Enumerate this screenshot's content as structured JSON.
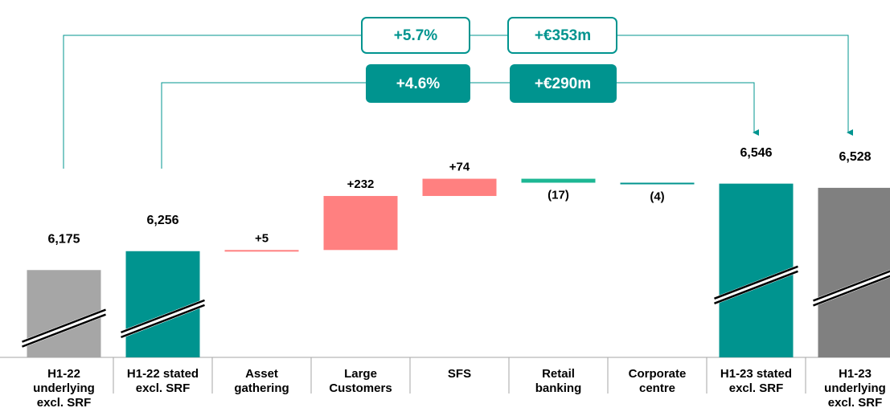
{
  "chart_data": {
    "type": "waterfall",
    "categories": [
      "H1-22\nunderlying\nexcl. SRF",
      "H1-22 stated\nexcl. SRF",
      "Asset\ngathering",
      "Large\nCustomers",
      "SFS",
      "Retail\nbanking",
      "Corporate\ncentre",
      "H1-23 stated\nexcl. SRF",
      "H1-23\nunderlying\nexcl. SRF"
    ],
    "values": [
      6175,
      6256,
      5,
      232,
      74,
      -17,
      -4,
      6546,
      6528
    ],
    "value_labels": [
      "6,175",
      "6,256",
      "+5",
      "+232",
      "+74",
      "(17)",
      "(4)",
      "6,546",
      "6,528"
    ],
    "measure": [
      "absolute",
      "absolute",
      "relative",
      "relative",
      "relative",
      "relative",
      "relative",
      "absolute",
      "absolute"
    ],
    "colors": [
      "#a6a6a6",
      "#00948f",
      "#ff8080",
      "#ff8080",
      "#ff8080",
      "#1db794",
      "#00948f",
      "#00948f",
      "#808080"
    ],
    "ylim": [
      5800,
      6700
    ],
    "annotations": [
      "+5.7%",
      "+€353m",
      "+4.6%",
      "+€290m"
    ]
  }
}
